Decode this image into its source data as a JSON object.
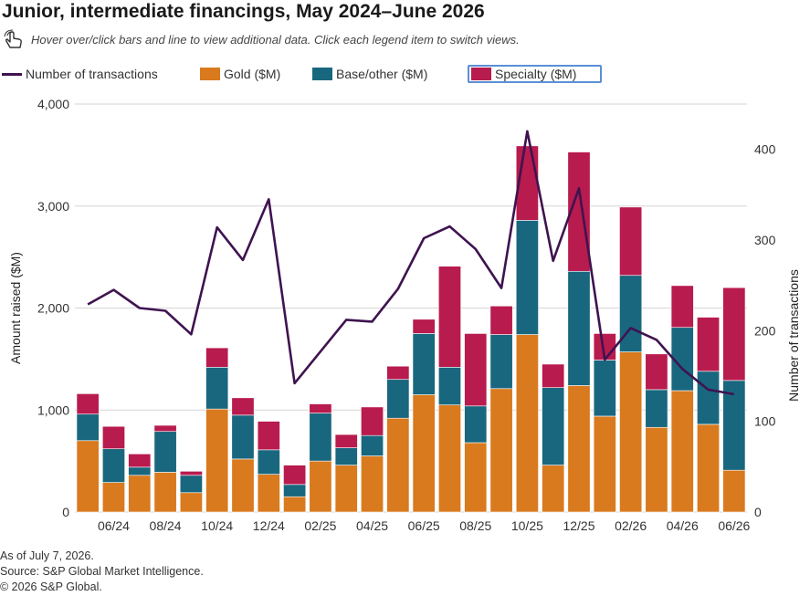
{
  "header": {
    "title": "Junior, intermediate financings, May 2024–June 2026",
    "subtitle": "Hover over/click bars and line to view additional data. Click each legend item to switch views."
  },
  "legend": {
    "transactions": "Number of transactions",
    "gold": "Gold ($M)",
    "base": "Base/other ($M)",
    "specialty": "Specialty ($M)"
  },
  "colors": {
    "gold": "#d97a1e",
    "base": "#19677f",
    "specialty": "#b81b4e",
    "line": "#3f1350",
    "legend_selected_border": "#5b8fd6"
  },
  "footer": {
    "as_of": "As of July 7, 2026.",
    "source": "Source: S&P Global Market Intelligence.",
    "copyright": "© 2026 S&P Global."
  },
  "chart_data": {
    "type": "bar",
    "stacked": true,
    "categories": [
      "05/24",
      "06/24",
      "07/24",
      "08/24",
      "09/24",
      "10/24",
      "11/24",
      "12/24",
      "01/25",
      "02/25",
      "03/25",
      "04/25",
      "05/25",
      "06/25",
      "07/25",
      "08/25",
      "09/25",
      "10/25",
      "11/25",
      "12/25",
      "01/26",
      "02/26",
      "03/26",
      "04/26",
      "05/26",
      "06/26"
    ],
    "tick_labels": [
      "06/24",
      "08/24",
      "10/24",
      "12/24",
      "02/25",
      "04/25",
      "06/25",
      "08/25",
      "10/25",
      "12/25",
      "02/26",
      "04/26",
      "06/26"
    ],
    "series": [
      {
        "name": "Gold ($M)",
        "key": "gold",
        "values": [
          700,
          290,
          360,
          390,
          190,
          1010,
          520,
          370,
          150,
          500,
          460,
          550,
          920,
          1150,
          1050,
          680,
          1210,
          1740,
          460,
          1240,
          940,
          1570,
          830,
          1190,
          860,
          410
        ]
      },
      {
        "name": "Base/other ($M)",
        "key": "base",
        "values": [
          260,
          330,
          80,
          400,
          170,
          410,
          430,
          240,
          120,
          470,
          170,
          200,
          380,
          600,
          370,
          360,
          530,
          1120,
          760,
          1120,
          550,
          750,
          370,
          620,
          520,
          880
        ]
      },
      {
        "name": "Specialty ($M)",
        "key": "specialty",
        "values": [
          200,
          220,
          130,
          60,
          40,
          190,
          170,
          280,
          190,
          90,
          130,
          280,
          130,
          140,
          990,
          710,
          280,
          730,
          230,
          1170,
          260,
          670,
          350,
          410,
          530,
          910
        ]
      }
    ],
    "line": {
      "name": "Number of transactions",
      "values": [
        229,
        245,
        225,
        222,
        196,
        314,
        278,
        345,
        142,
        177,
        212,
        210,
        246,
        302,
        315,
        290,
        247,
        420,
        277,
        357,
        168,
        203,
        190,
        158,
        135,
        130
      ]
    },
    "ylabel": "Amount raised ($M)",
    "y2label": "Number of transactions",
    "ylim": [
      0,
      4000
    ],
    "yticks": [
      "0",
      "1,000",
      "2,000",
      "3,000",
      "4,000"
    ],
    "y2lim": [
      0,
      450
    ],
    "y2ticks": [
      "0",
      "100",
      "200",
      "300",
      "400"
    ],
    "grid": true,
    "legend_position": "top"
  }
}
